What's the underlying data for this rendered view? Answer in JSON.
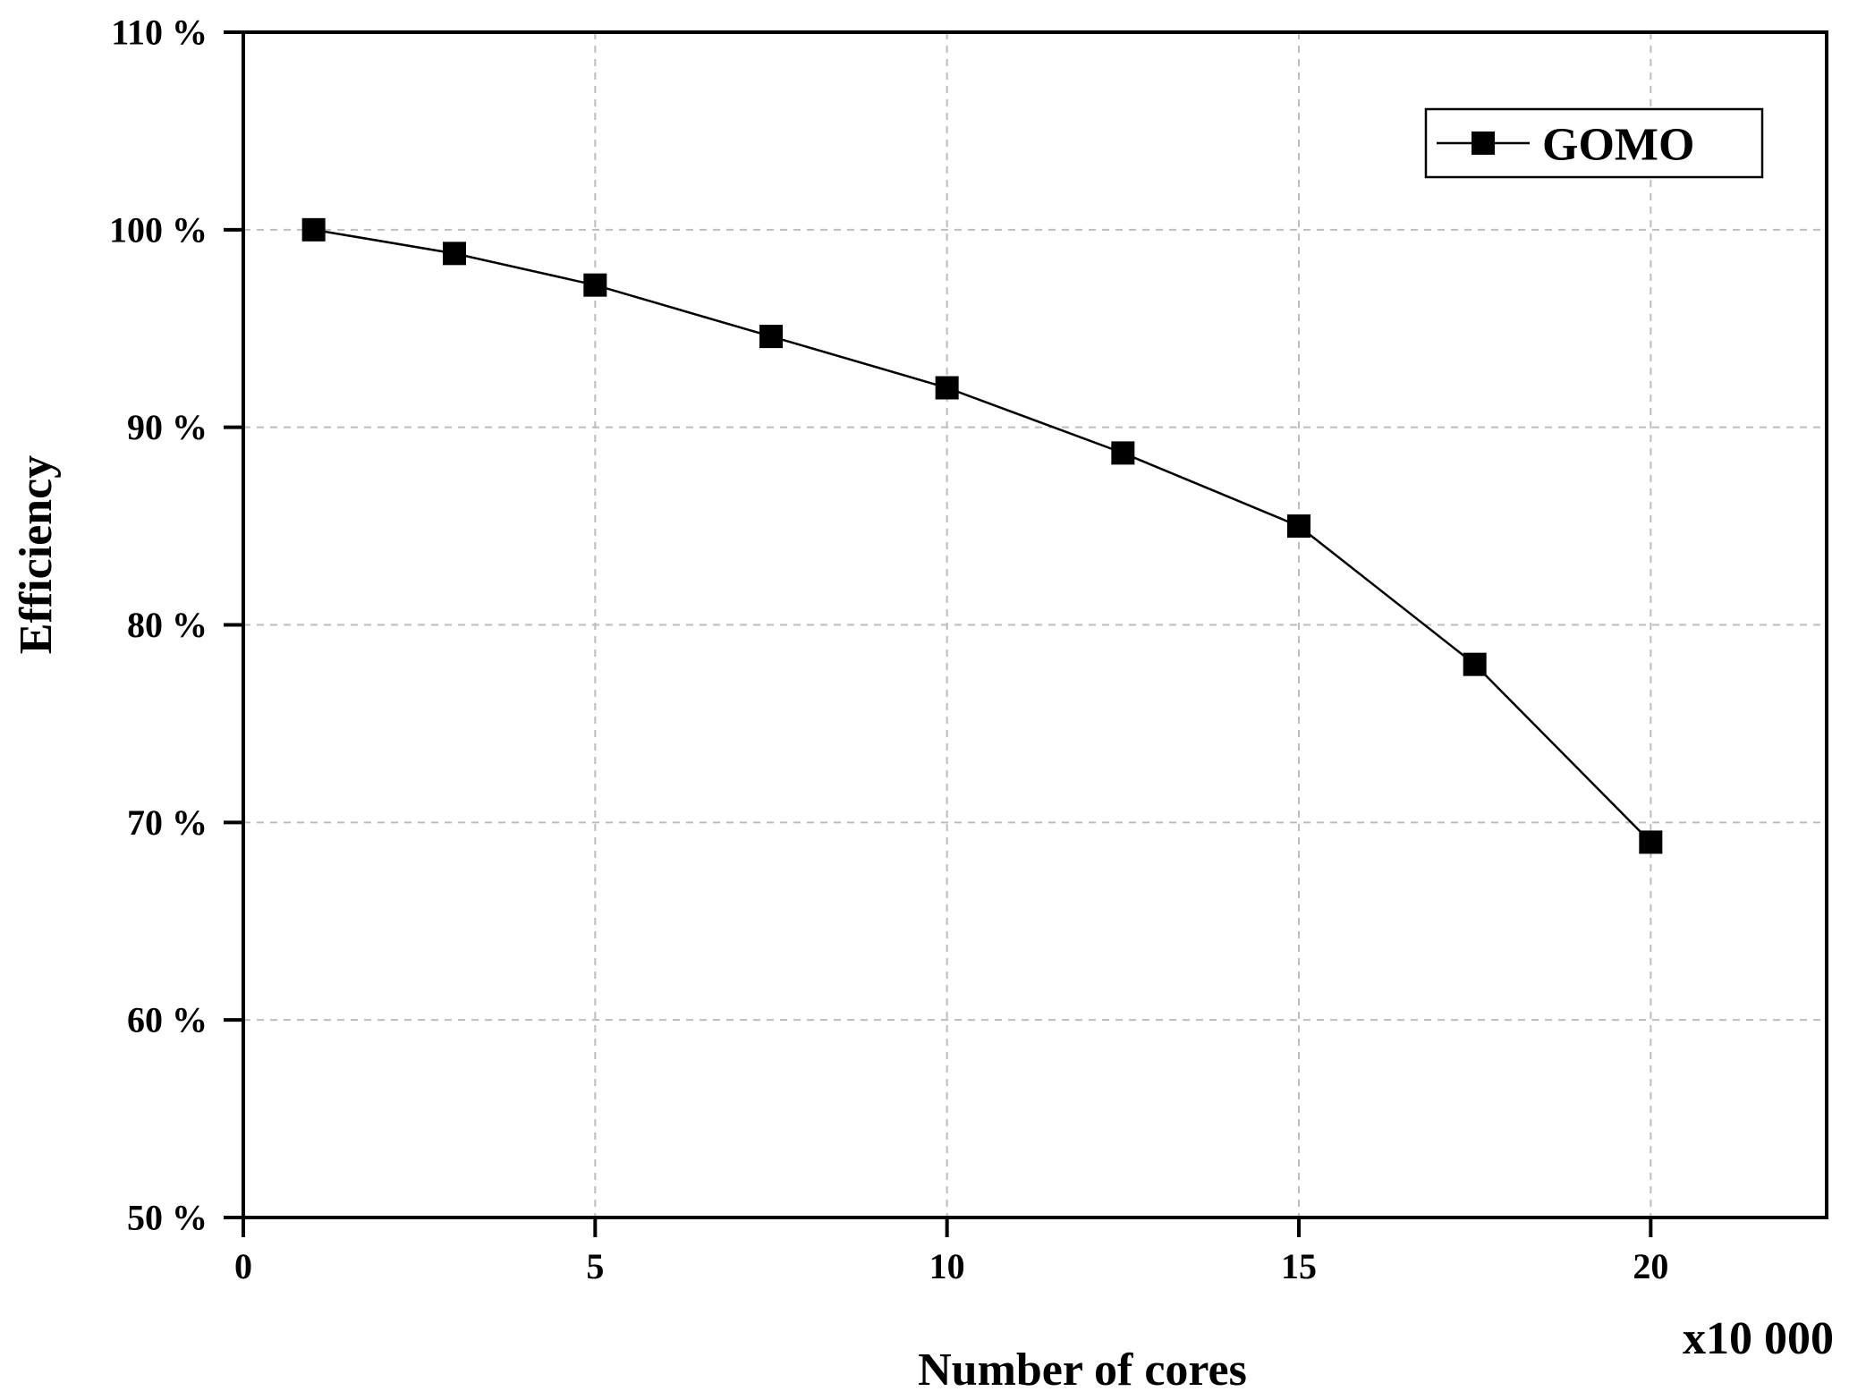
{
  "chart_data": {
    "type": "line",
    "title": "",
    "xlabel": "Number of cores",
    "ylabel": "Efficiency",
    "x_multiplier_label": "x10 000",
    "xlim": [
      0,
      22.5
    ],
    "ylim": [
      50,
      110
    ],
    "x_ticks": [
      0,
      5,
      10,
      15,
      20
    ],
    "x_tick_labels": [
      "0",
      "5",
      "10",
      "15",
      "20"
    ],
    "y_ticks": [
      50,
      60,
      70,
      80,
      90,
      100,
      110
    ],
    "y_tick_labels": [
      "50 %",
      "60 %",
      "70 %",
      "80 %",
      "90 %",
      "100 %",
      "110 %"
    ],
    "grid": true,
    "legend_position": "top-right",
    "series": [
      {
        "name": "GOMO",
        "color": "#000000",
        "marker": "square",
        "x": [
          1,
          3,
          5,
          7.5,
          10,
          12.5,
          15,
          17.5,
          20
        ],
        "y": [
          100,
          98.8,
          97.2,
          94.6,
          92,
          88.7,
          85,
          78,
          69
        ]
      }
    ]
  }
}
